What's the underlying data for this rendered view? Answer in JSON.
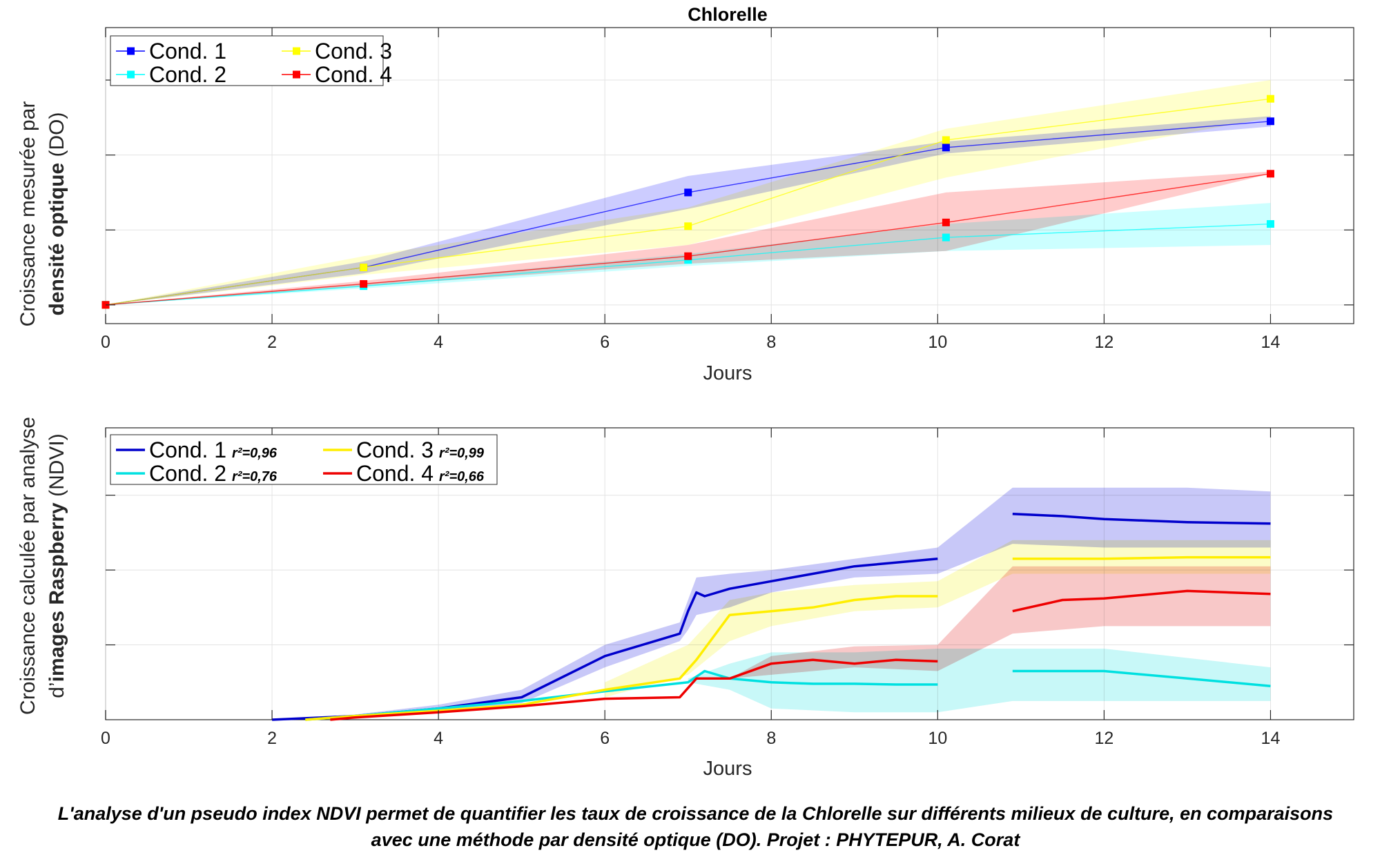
{
  "chart_data": [
    {
      "type": "line",
      "title": "Chlorelle",
      "xlabel": "Jours",
      "ylabel_line1": "Croissance mesurée par",
      "ylabel_line2_bold": "densité optique",
      "ylabel_line2_rest": " (DO)",
      "xlim": [
        0,
        15
      ],
      "ylim": [
        -0.25,
        3.7
      ],
      "xticks": [
        0,
        2,
        4,
        6,
        8,
        10,
        12,
        14
      ],
      "yticks": [
        0,
        1,
        2,
        3
      ],
      "show_ytick_labels": false,
      "grid": true,
      "legend_position": "top-left",
      "series": [
        {
          "name": "Cond. 1",
          "color": "#0000ff",
          "x": [
            0,
            3.1,
            7,
            10.1,
            14
          ],
          "y": [
            0,
            0.5,
            1.5,
            2.1,
            2.45
          ],
          "lower": [
            0,
            0.42,
            1.28,
            2.02,
            2.38
          ],
          "upper": [
            0,
            0.58,
            1.72,
            2.18,
            2.52
          ]
        },
        {
          "name": "Cond. 2",
          "color": "#00ffff",
          "x": [
            0,
            3.1,
            7,
            10.1,
            14
          ],
          "y": [
            0,
            0.25,
            0.6,
            0.9,
            1.08
          ],
          "lower": [
            0,
            0.22,
            0.52,
            0.72,
            0.8
          ],
          "upper": [
            0,
            0.28,
            0.68,
            1.08,
            1.36
          ]
        },
        {
          "name": "Cond. 3",
          "color": "#ffff00",
          "x": [
            0,
            3.1,
            7,
            10.1,
            14
          ],
          "y": [
            0,
            0.5,
            1.05,
            2.2,
            2.75
          ],
          "lower": [
            0,
            0.4,
            0.8,
            1.7,
            2.5
          ],
          "upper": [
            0,
            0.65,
            1.3,
            2.35,
            3.0
          ]
        },
        {
          "name": "Cond. 4",
          "color": "#ff0000",
          "x": [
            0,
            3.1,
            7,
            10.1,
            14
          ],
          "y": [
            0,
            0.28,
            0.65,
            1.1,
            1.75
          ],
          "lower": [
            0,
            0.25,
            0.55,
            0.72,
            1.75
          ],
          "upper": [
            0,
            0.32,
            0.8,
            1.5,
            1.78
          ]
        }
      ]
    },
    {
      "type": "line",
      "title": "",
      "xlabel": "Jours",
      "ylabel_line1": "Croissance calculée par analyse",
      "ylabel_line2_pre": "d’",
      "ylabel_line2_bold": "images Raspberry",
      "ylabel_line2_rest": " (NDVI)",
      "xlim": [
        0,
        15
      ],
      "ylim": [
        0,
        3.9
      ],
      "xticks": [
        0,
        2,
        4,
        6,
        8,
        10,
        12,
        14
      ],
      "yticks": [
        1,
        2,
        3
      ],
      "show_ytick_labels": false,
      "grid": true,
      "legend_position": "top-left",
      "series": [
        {
          "name": "Cond. 1",
          "r2": "r²=0,96",
          "color": "#0000cc",
          "band": "#aaaaf5",
          "segments": [
            {
              "x": [
                2,
                3,
                4,
                5,
                6,
                6.9,
                7,
                7.1,
                7.2,
                7.5,
                8,
                8.5,
                9,
                10
              ],
              "y": [
                0,
                0.05,
                0.15,
                0.3,
                0.85,
                1.15,
                1.45,
                1.7,
                1.65,
                1.75,
                1.85,
                1.95,
                2.05,
                2.15
              ]
            },
            {
              "x": [
                10.9,
                11.5,
                12,
                13,
                14
              ],
              "y": [
                2.75,
                2.72,
                2.68,
                2.64,
                2.62
              ]
            }
          ],
          "band_x": [
            2,
            3,
            4,
            5,
            6,
            6.9,
            7,
            7.1,
            7.5,
            8,
            9,
            10,
            10.9,
            12,
            13,
            14
          ],
          "band_lower": [
            0,
            0.03,
            0.1,
            0.22,
            0.7,
            1.05,
            1.2,
            1.4,
            1.5,
            1.7,
            1.9,
            1.95,
            2.35,
            2.3,
            2.3,
            2.3
          ],
          "band_upper": [
            0,
            0.07,
            0.2,
            0.4,
            1.0,
            1.3,
            1.6,
            1.9,
            1.95,
            2.0,
            2.15,
            2.3,
            3.1,
            3.1,
            3.1,
            3.05
          ]
        },
        {
          "name": "Cond. 2",
          "r2": "r²=0,76",
          "color": "#00e0e0",
          "band": "#aaf5f5",
          "segments": [
            {
              "x": [
                2.4,
                3,
                4,
                5,
                6,
                7,
                7.2,
                7.5,
                8,
                8.5,
                9,
                9.5,
                10
              ],
              "y": [
                0,
                0.05,
                0.15,
                0.25,
                0.38,
                0.5,
                0.65,
                0.55,
                0.5,
                0.48,
                0.48,
                0.47,
                0.47
              ]
            },
            {
              "x": [
                10.9,
                12,
                13,
                14
              ],
              "y": [
                0.65,
                0.65,
                0.55,
                0.45
              ]
            }
          ],
          "band_x": [
            7,
            7.5,
            8,
            9,
            10,
            10.9,
            12,
            14
          ],
          "band_lower": [
            0.5,
            0.4,
            0.15,
            0.1,
            0.1,
            0.25,
            0.25,
            0.25
          ],
          "band_upper": [
            0.55,
            0.75,
            0.9,
            0.9,
            0.95,
            0.95,
            0.95,
            0.7
          ]
        },
        {
          "name": "Cond. 3",
          "r2": "r²=0,99",
          "color": "#ffee00",
          "band": "#fafaaa",
          "segments": [
            {
              "x": [
                2.4,
                3,
                4,
                5,
                6,
                6.9,
                7.1,
                7.5,
                8,
                8.5,
                9,
                9.5,
                10
              ],
              "y": [
                0,
                0.05,
                0.12,
                0.2,
                0.4,
                0.55,
                0.8,
                1.4,
                1.45,
                1.5,
                1.6,
                1.65,
                1.65
              ]
            },
            {
              "x": [
                10.9,
                12,
                13,
                14
              ],
              "y": [
                2.15,
                2.15,
                2.17,
                2.17
              ]
            }
          ],
          "band_x": [
            6,
            7,
            7.5,
            8,
            9,
            10,
            10.9,
            12,
            14
          ],
          "band_lower": [
            0.3,
            0.6,
            1.05,
            1.25,
            1.45,
            1.5,
            1.95,
            1.95,
            1.95
          ],
          "band_upper": [
            0.5,
            1.0,
            1.6,
            1.7,
            1.8,
            1.85,
            2.4,
            2.4,
            2.4
          ]
        },
        {
          "name": "Cond. 4",
          "r2": "r²=0,66",
          "color": "#ee0000",
          "band": "#f5aaaa",
          "segments": [
            {
              "x": [
                2.7,
                3,
                4,
                5,
                6,
                6.9,
                7.1,
                7.5,
                8,
                8.5,
                9,
                9.5,
                10
              ],
              "y": [
                0,
                0.03,
                0.1,
                0.18,
                0.28,
                0.3,
                0.55,
                0.55,
                0.75,
                0.8,
                0.75,
                0.8,
                0.78
              ]
            },
            {
              "x": [
                10.9,
                11.5,
                12,
                13,
                14
              ],
              "y": [
                1.45,
                1.6,
                1.62,
                1.72,
                1.68
              ]
            }
          ],
          "band_x": [
            7.5,
            8,
            9,
            10,
            10.9,
            12,
            14
          ],
          "band_lower": [
            0.55,
            0.6,
            0.7,
            0.65,
            1.15,
            1.25,
            1.25
          ],
          "band_upper": [
            0.55,
            0.85,
            0.98,
            1.0,
            2.05,
            2.05,
            2.05
          ]
        }
      ]
    }
  ],
  "caption": {
    "line1": "L'analyse d'un pseudo index NDVI permet de quantifier les taux de croissance de la Chlorelle sur différents milieux de culture, en comparaisons",
    "line2": "avec une méthode par densité optique (DO). Projet : PHYTEPUR, A. Corat"
  }
}
